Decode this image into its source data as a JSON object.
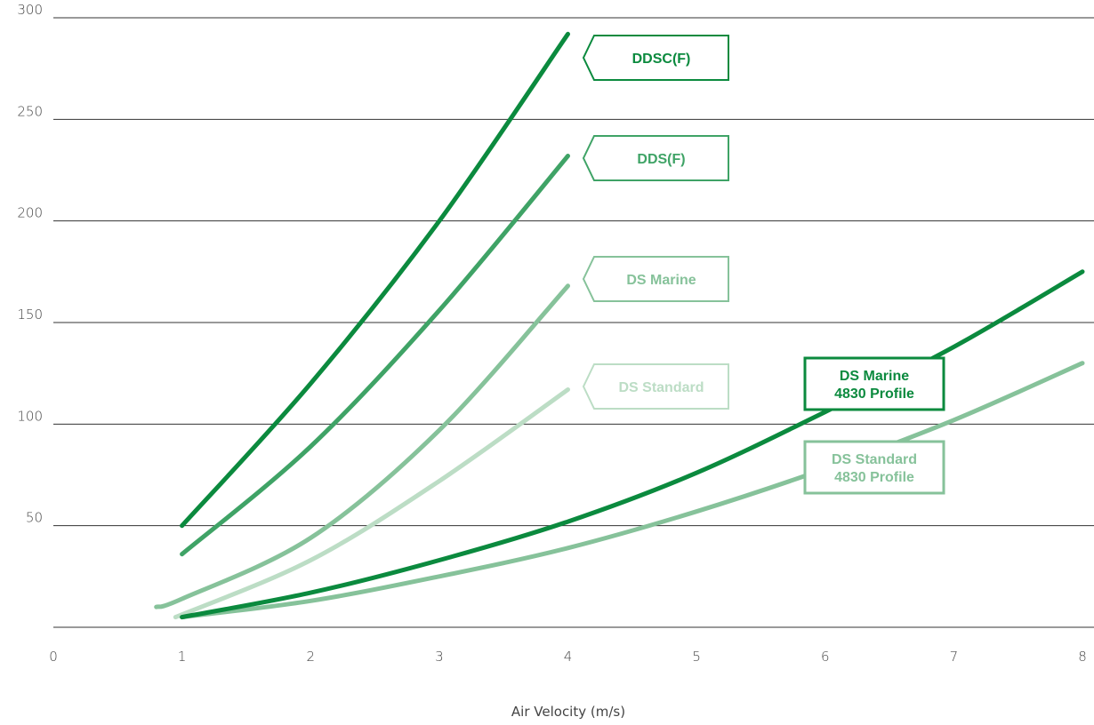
{
  "chart_data": {
    "type": "line",
    "title": "",
    "xlabel": "Air Velocity (m/s)",
    "ylabel": "",
    "xlim": [
      0,
      8
    ],
    "ylim": [
      0,
      300
    ],
    "x_ticks": [
      "0",
      "1",
      "2",
      "3",
      "4",
      "5",
      "6",
      "7",
      "8"
    ],
    "y_ticks": [
      "50",
      "100",
      "150",
      "200",
      "250",
      "300"
    ],
    "grid": "horizontal",
    "colors": {
      "dark_green": "#0B8A3E",
      "medium_green": "#3FA366",
      "light_green": "#86C29A",
      "pale_green": "#BCDDC5"
    },
    "series": [
      {
        "name": "DDSC(F)",
        "color": "#0B8A3E",
        "points": [
          [
            1,
            50
          ],
          [
            2,
            120
          ],
          [
            3,
            200
          ],
          [
            4,
            292
          ]
        ]
      },
      {
        "name": "DDS(F)",
        "color": "#3FA366",
        "points": [
          [
            1,
            36
          ],
          [
            2,
            89
          ],
          [
            3,
            156
          ],
          [
            4,
            232
          ]
        ]
      },
      {
        "name": "DS Marine",
        "color": "#86C29A",
        "points": [
          [
            0.8,
            10
          ],
          [
            1,
            14
          ],
          [
            2,
            44
          ],
          [
            3,
            97
          ],
          [
            4,
            168
          ]
        ]
      },
      {
        "name": "DS Standard",
        "color": "#BCDDC5",
        "points": [
          [
            0.95,
            5
          ],
          [
            2,
            33
          ],
          [
            3,
            72
          ],
          [
            4,
            117
          ]
        ]
      },
      {
        "name": "DS Marine 4830 Profile",
        "color": "#0B8A3E",
        "points": [
          [
            1,
            5
          ],
          [
            2,
            17
          ],
          [
            3,
            33
          ],
          [
            4,
            52
          ],
          [
            5,
            76
          ],
          [
            6,
            106
          ],
          [
            7,
            138
          ],
          [
            8,
            175
          ]
        ]
      },
      {
        "name": "DS Standard 4830 Profile",
        "color": "#86C29A",
        "points": [
          [
            1,
            5
          ],
          [
            2,
            13
          ],
          [
            3,
            25
          ],
          [
            4,
            39
          ],
          [
            5,
            57
          ],
          [
            6,
            78
          ],
          [
            7,
            102
          ],
          [
            8,
            130
          ]
        ]
      }
    ],
    "labels": [
      {
        "lines": [
          "DDSC(F)"
        ],
        "color": "#0B8A3E",
        "shape": "arrow"
      },
      {
        "lines": [
          "DDS(F)"
        ],
        "color": "#3FA366",
        "shape": "arrow"
      },
      {
        "lines": [
          "DS Marine"
        ],
        "color": "#86C29A",
        "shape": "arrow"
      },
      {
        "lines": [
          "DS Standard"
        ],
        "color": "#BCDDC5",
        "shape": "arrow"
      },
      {
        "lines": [
          "DS Marine",
          "4830 Profile"
        ],
        "color": "#0B8A3E",
        "shape": "box"
      },
      {
        "lines": [
          "DS Standard",
          "4830 Profile"
        ],
        "color": "#86C29A",
        "shape": "box"
      }
    ]
  }
}
